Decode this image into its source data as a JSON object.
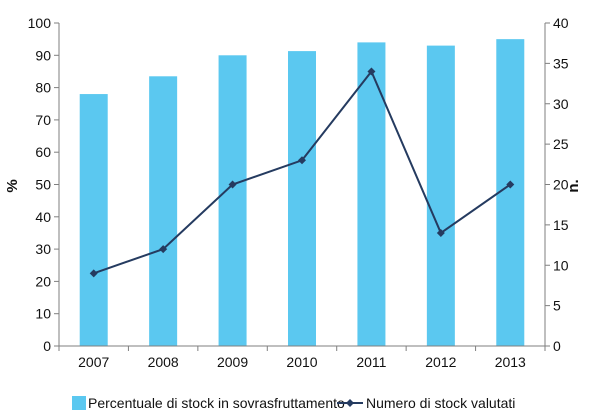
{
  "chart_data": {
    "type": "bar+line",
    "categories": [
      "2007",
      "2008",
      "2009",
      "2010",
      "2011",
      "2012",
      "2013"
    ],
    "series": [
      {
        "name": "Percentuale  di stock in sovrasfruttamento",
        "type": "bar",
        "axis": "left",
        "values": [
          78,
          83.5,
          90,
          91.3,
          94,
          93,
          95
        ],
        "color": "#5BC8F0"
      },
      {
        "name": "Numero di stock valutati",
        "type": "line",
        "axis": "right",
        "values": [
          9,
          12,
          20,
          23,
          34,
          14,
          20
        ],
        "color": "#253B60"
      }
    ],
    "ylabel": "%",
    "y2label": "n.",
    "ylim": [
      0,
      100
    ],
    "y2lim": [
      0,
      40
    ],
    "yticks": [
      "0",
      "10",
      "20",
      "30",
      "40",
      "50",
      "60",
      "70",
      "80",
      "90",
      "100"
    ],
    "y2ticks": [
      "0",
      "5",
      "10",
      "15",
      "20",
      "25",
      "30",
      "35",
      "40"
    ],
    "grid": false,
    "legend_position": "bottom"
  }
}
